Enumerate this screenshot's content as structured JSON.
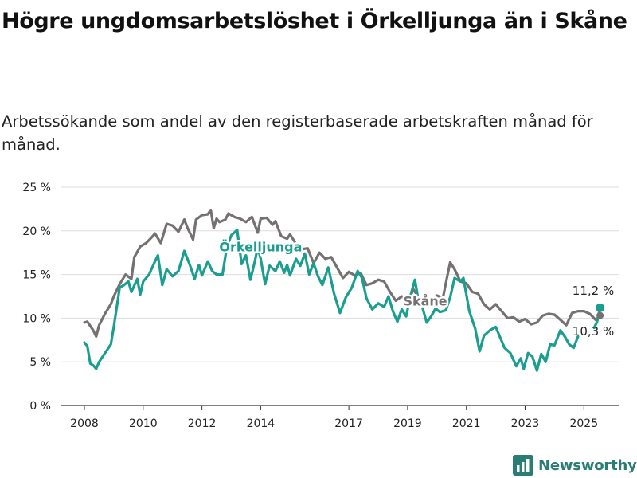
{
  "header": {
    "title": "Högre ungdomsarbetslöshet i Örkelljunga än i Skåne",
    "subtitle": "Arbetssökande som andel av den registerbaserade arbetskraften månad för månad."
  },
  "brand": {
    "name": "Newsworthy",
    "icon": "bar-chart-logo-icon",
    "color": "#2a7d74"
  },
  "chart_data": {
    "type": "line",
    "title": "Högre ungdomsarbetslöshet i Örkelljunga än i Skåne",
    "subtitle": "Arbetssökande som andel av den registerbaserade arbetskraften månad för månad.",
    "ylim": [
      0,
      25
    ],
    "xlim": [
      2007.5,
      2026.4
    ],
    "y_ticks": [
      {
        "value": 0,
        "label": "0 %"
      },
      {
        "value": 5,
        "label": "5 %"
      },
      {
        "value": 10,
        "label": "10 %"
      },
      {
        "value": 15,
        "label": "15 %"
      },
      {
        "value": 20,
        "label": "20 %"
      },
      {
        "value": 25,
        "label": "25 %"
      }
    ],
    "x_ticks": [
      {
        "value": 2008,
        "label": "2008"
      },
      {
        "value": 2010,
        "label": "2010"
      },
      {
        "value": 2012,
        "label": "2012"
      },
      {
        "value": 2014,
        "label": "2014"
      },
      {
        "value": 2017,
        "label": "2017"
      },
      {
        "value": 2019,
        "label": "2019"
      },
      {
        "value": 2021,
        "label": "2021"
      },
      {
        "value": 2023,
        "label": "2023"
      },
      {
        "value": 2025,
        "label": "2025"
      }
    ],
    "grid": true,
    "legend": "inline",
    "series": [
      {
        "name": "Skåne",
        "color": "#767171",
        "label_position": [
          2019.6,
          12.0
        ],
        "points": [
          [
            2008.0,
            9.5
          ],
          [
            2008.1,
            9.6
          ],
          [
            2008.3,
            8.6
          ],
          [
            2008.4,
            7.9
          ],
          [
            2008.5,
            9.2
          ],
          [
            2008.7,
            10.5
          ],
          [
            2008.9,
            11.6
          ],
          [
            2009.0,
            12.5
          ],
          [
            2009.2,
            13.9
          ],
          [
            2009.4,
            15.0
          ],
          [
            2009.6,
            14.5
          ],
          [
            2009.7,
            17.0
          ],
          [
            2009.9,
            18.2
          ],
          [
            2010.1,
            18.6
          ],
          [
            2010.3,
            19.3
          ],
          [
            2010.4,
            19.7
          ],
          [
            2010.6,
            18.6
          ],
          [
            2010.8,
            20.8
          ],
          [
            2011.0,
            20.6
          ],
          [
            2011.2,
            19.9
          ],
          [
            2011.4,
            21.3
          ],
          [
            2011.5,
            20.4
          ],
          [
            2011.7,
            19.0
          ],
          [
            2011.8,
            21.3
          ],
          [
            2012.0,
            21.8
          ],
          [
            2012.2,
            21.9
          ],
          [
            2012.3,
            22.4
          ],
          [
            2012.4,
            20.3
          ],
          [
            2012.5,
            21.4
          ],
          [
            2012.6,
            21.0
          ],
          [
            2012.8,
            21.3
          ],
          [
            2012.9,
            22.0
          ],
          [
            2013.1,
            21.6
          ],
          [
            2013.3,
            21.4
          ],
          [
            2013.5,
            21.0
          ],
          [
            2013.7,
            21.6
          ],
          [
            2013.9,
            19.8
          ],
          [
            2014.0,
            21.4
          ],
          [
            2014.2,
            21.5
          ],
          [
            2014.4,
            20.7
          ],
          [
            2014.5,
            21.1
          ],
          [
            2014.7,
            19.4
          ],
          [
            2014.9,
            19.1
          ],
          [
            2015.0,
            19.6
          ],
          [
            2015.2,
            18.5
          ],
          [
            2015.4,
            17.9
          ],
          [
            2015.6,
            18.0
          ],
          [
            2015.8,
            16.3
          ],
          [
            2016.0,
            17.5
          ],
          [
            2016.2,
            16.8
          ],
          [
            2016.4,
            17.0
          ],
          [
            2016.6,
            15.8
          ],
          [
            2016.8,
            14.6
          ],
          [
            2017.0,
            15.3
          ],
          [
            2017.2,
            14.9
          ],
          [
            2017.4,
            15.2
          ],
          [
            2017.6,
            13.8
          ],
          [
            2017.8,
            14.0
          ],
          [
            2018.0,
            14.4
          ],
          [
            2018.2,
            14.2
          ],
          [
            2018.4,
            13.0
          ],
          [
            2018.6,
            12.0
          ],
          [
            2018.8,
            12.5
          ],
          [
            2019.0,
            11.8
          ],
          [
            2019.2,
            13.3
          ],
          [
            2019.4,
            12.2
          ],
          [
            2019.6,
            11.5
          ],
          [
            2019.8,
            12.0
          ],
          [
            2020.0,
            12.6
          ],
          [
            2020.2,
            12.3
          ],
          [
            2020.35,
            14.8
          ],
          [
            2020.45,
            16.4
          ],
          [
            2020.6,
            15.6
          ],
          [
            2020.8,
            14.2
          ],
          [
            2021.0,
            14.0
          ],
          [
            2021.2,
            13.0
          ],
          [
            2021.4,
            12.8
          ],
          [
            2021.6,
            11.6
          ],
          [
            2021.8,
            11.0
          ],
          [
            2022.0,
            11.6
          ],
          [
            2022.2,
            10.8
          ],
          [
            2022.4,
            10.0
          ],
          [
            2022.6,
            10.1
          ],
          [
            2022.8,
            9.6
          ],
          [
            2023.0,
            9.9
          ],
          [
            2023.2,
            9.3
          ],
          [
            2023.4,
            9.5
          ],
          [
            2023.6,
            10.3
          ],
          [
            2023.8,
            10.5
          ],
          [
            2024.0,
            10.4
          ],
          [
            2024.2,
            9.8
          ],
          [
            2024.4,
            9.2
          ],
          [
            2024.6,
            10.6
          ],
          [
            2024.8,
            10.8
          ],
          [
            2025.0,
            10.8
          ],
          [
            2025.2,
            10.5
          ],
          [
            2025.4,
            9.8
          ],
          [
            2025.55,
            10.3
          ]
        ],
        "last_value_label": "10,3 %"
      },
      {
        "name": "Örkelljunga",
        "color": "#1a9e8f",
        "label_position": [
          2014.0,
          18.2
        ],
        "points": [
          [
            2008.0,
            7.2
          ],
          [
            2008.1,
            6.8
          ],
          [
            2008.2,
            4.8
          ],
          [
            2008.3,
            4.6
          ],
          [
            2008.4,
            4.2
          ],
          [
            2008.5,
            5.0
          ],
          [
            2008.7,
            6.0
          ],
          [
            2008.9,
            7.0
          ],
          [
            2009.0,
            9.0
          ],
          [
            2009.2,
            13.5
          ],
          [
            2009.35,
            13.8
          ],
          [
            2009.5,
            14.2
          ],
          [
            2009.6,
            13.0
          ],
          [
            2009.8,
            14.5
          ],
          [
            2009.9,
            12.7
          ],
          [
            2010.0,
            14.2
          ],
          [
            2010.2,
            15.0
          ],
          [
            2010.4,
            16.5
          ],
          [
            2010.5,
            17.2
          ],
          [
            2010.65,
            13.8
          ],
          [
            2010.8,
            15.6
          ],
          [
            2011.0,
            14.8
          ],
          [
            2011.2,
            15.4
          ],
          [
            2011.4,
            17.7
          ],
          [
            2011.6,
            16.0
          ],
          [
            2011.75,
            14.5
          ],
          [
            2011.9,
            16.1
          ],
          [
            2012.0,
            14.9
          ],
          [
            2012.2,
            16.5
          ],
          [
            2012.35,
            15.4
          ],
          [
            2012.5,
            15.0
          ],
          [
            2012.7,
            15.0
          ],
          [
            2012.85,
            18.2
          ],
          [
            2013.0,
            19.5
          ],
          [
            2013.2,
            20.1
          ],
          [
            2013.35,
            16.2
          ],
          [
            2013.5,
            17.2
          ],
          [
            2013.65,
            14.4
          ],
          [
            2013.8,
            16.5
          ],
          [
            2013.9,
            18.1
          ],
          [
            2014.0,
            16.8
          ],
          [
            2014.15,
            13.9
          ],
          [
            2014.3,
            16.0
          ],
          [
            2014.5,
            15.4
          ],
          [
            2014.65,
            16.5
          ],
          [
            2014.8,
            15.2
          ],
          [
            2014.9,
            16.1
          ],
          [
            2015.0,
            14.9
          ],
          [
            2015.2,
            16.8
          ],
          [
            2015.35,
            16.0
          ],
          [
            2015.5,
            17.4
          ],
          [
            2015.65,
            15.0
          ],
          [
            2015.8,
            16.3
          ],
          [
            2015.95,
            14.8
          ],
          [
            2016.1,
            13.8
          ],
          [
            2016.3,
            15.8
          ],
          [
            2016.5,
            12.8
          ],
          [
            2016.7,
            10.6
          ],
          [
            2016.9,
            12.4
          ],
          [
            2017.1,
            13.5
          ],
          [
            2017.3,
            15.4
          ],
          [
            2017.45,
            14.6
          ],
          [
            2017.6,
            12.3
          ],
          [
            2017.8,
            11.0
          ],
          [
            2018.0,
            11.7
          ],
          [
            2018.2,
            11.3
          ],
          [
            2018.35,
            12.5
          ],
          [
            2018.5,
            10.8
          ],
          [
            2018.65,
            9.6
          ],
          [
            2018.8,
            11.0
          ],
          [
            2018.95,
            10.2
          ],
          [
            2019.1,
            12.6
          ],
          [
            2019.25,
            14.4
          ],
          [
            2019.35,
            12.4
          ],
          [
            2019.5,
            11.3
          ],
          [
            2019.65,
            9.5
          ],
          [
            2019.8,
            10.2
          ],
          [
            2019.95,
            11.1
          ],
          [
            2020.1,
            10.7
          ],
          [
            2020.3,
            10.9
          ],
          [
            2020.45,
            12.4
          ],
          [
            2020.6,
            14.6
          ],
          [
            2020.8,
            14.2
          ],
          [
            2020.9,
            14.6
          ],
          [
            2021.1,
            10.8
          ],
          [
            2021.3,
            8.8
          ],
          [
            2021.45,
            6.2
          ],
          [
            2021.6,
            8.0
          ],
          [
            2021.8,
            8.6
          ],
          [
            2022.0,
            9.0
          ],
          [
            2022.15,
            7.8
          ],
          [
            2022.3,
            6.6
          ],
          [
            2022.5,
            6.0
          ],
          [
            2022.7,
            4.5
          ],
          [
            2022.85,
            5.4
          ],
          [
            2022.95,
            4.2
          ],
          [
            2023.1,
            6.0
          ],
          [
            2023.25,
            5.6
          ],
          [
            2023.4,
            4.0
          ],
          [
            2023.55,
            5.9
          ],
          [
            2023.7,
            5.0
          ],
          [
            2023.85,
            7.0
          ],
          [
            2024.0,
            6.9
          ],
          [
            2024.2,
            8.6
          ],
          [
            2024.35,
            7.9
          ],
          [
            2024.5,
            7.0
          ],
          [
            2024.65,
            6.6
          ],
          [
            2024.8,
            7.9
          ]
        ],
        "trailing_points": [
          [
            2025.35,
            8.9
          ],
          [
            2025.45,
            9.6
          ],
          [
            2025.55,
            11.2
          ]
        ],
        "last_value_label": "11,2 %"
      }
    ]
  }
}
